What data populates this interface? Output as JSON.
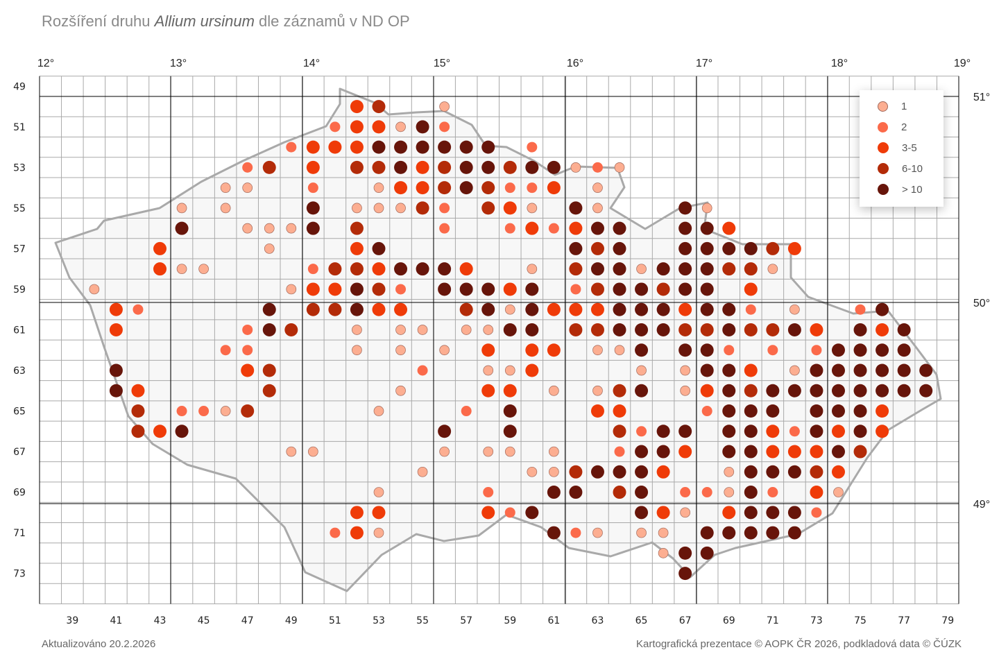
{
  "title": {
    "prefix": "Rozšíření druhu ",
    "species": "Allium ursinum",
    "suffix": " dle záznamů v ND OP"
  },
  "footer": {
    "updated": "Aktualizováno 20.2.2026",
    "credits": "Kartografická prezentace © AOPK ČR 2026, podkladová data © ČÚZK"
  },
  "longitudes": [
    "12°",
    "13°",
    "14°",
    "15°",
    "16°",
    "17°",
    "18°",
    "19°"
  ],
  "latitudes": [
    "51°",
    "50°",
    "49°"
  ],
  "row_labels": [
    "49",
    "51",
    "53",
    "55",
    "57",
    "59",
    "61",
    "63",
    "65",
    "67",
    "69",
    "71",
    "73"
  ],
  "column_labels": [
    "39",
    "41",
    "43",
    "45",
    "47",
    "49",
    "51",
    "53",
    "55",
    "57",
    "59",
    "61",
    "63",
    "65",
    "67",
    "69",
    "71",
    "73",
    "75",
    "77",
    "79"
  ],
  "legend": [
    {
      "label": "1",
      "color": "#fcae91"
    },
    {
      "label": "2",
      "color": "#fb6a4a"
    },
    {
      "label": "3-5",
      "color": "#ef3b08"
    },
    {
      "label": "6-10",
      "color": "#b32b08"
    },
    {
      "label": "> 10",
      "color": "#67150a"
    }
  ],
  "colors": {
    "border": "#a9a9a9",
    "grid": "#a9a9a9",
    "degree_lines": "#000000"
  },
  "records_by_square": [
    {
      "row": 50,
      "cells": [
        [
          52,
          3
        ],
        [
          53,
          4
        ],
        [
          56,
          1
        ]
      ]
    },
    {
      "row": 51,
      "cells": [
        [
          51,
          2
        ],
        [
          52,
          3
        ],
        [
          53,
          3
        ],
        [
          54,
          1
        ],
        [
          55,
          5
        ],
        [
          56,
          2
        ]
      ]
    },
    {
      "row": 52,
      "cells": [
        [
          49,
          2
        ],
        [
          50,
          3
        ],
        [
          51,
          3
        ],
        [
          52,
          3
        ],
        [
          53,
          5
        ],
        [
          54,
          5
        ],
        [
          55,
          5
        ],
        [
          56,
          5
        ],
        [
          57,
          5
        ],
        [
          58,
          5
        ],
        [
          60,
          2
        ]
      ]
    },
    {
      "row": 53,
      "cells": [
        [
          47,
          2
        ],
        [
          48,
          4
        ],
        [
          50,
          3
        ],
        [
          52,
          4
        ],
        [
          53,
          4
        ],
        [
          54,
          5
        ],
        [
          55,
          3
        ],
        [
          56,
          4
        ],
        [
          57,
          5
        ],
        [
          58,
          5
        ],
        [
          59,
          4
        ],
        [
          60,
          5
        ],
        [
          61,
          5
        ],
        [
          62,
          1
        ],
        [
          63,
          2
        ],
        [
          64,
          1
        ]
      ]
    },
    {
      "row": 54,
      "cells": [
        [
          46,
          1
        ],
        [
          47,
          1
        ],
        [
          50,
          2
        ],
        [
          53,
          1
        ],
        [
          54,
          3
        ],
        [
          55,
          3
        ],
        [
          56,
          4
        ],
        [
          57,
          5
        ],
        [
          58,
          4
        ],
        [
          59,
          2
        ],
        [
          60,
          2
        ],
        [
          61,
          3
        ],
        [
          63,
          1
        ]
      ]
    },
    {
      "row": 55,
      "cells": [
        [
          44,
          1
        ],
        [
          46,
          1
        ],
        [
          50,
          5
        ],
        [
          52,
          1
        ],
        [
          53,
          1
        ],
        [
          54,
          1
        ],
        [
          55,
          4
        ],
        [
          56,
          2
        ],
        [
          58,
          4
        ],
        [
          59,
          3
        ],
        [
          60,
          1
        ],
        [
          62,
          5
        ],
        [
          63,
          1
        ],
        [
          67,
          5
        ],
        [
          68,
          1
        ]
      ]
    },
    {
      "row": 56,
      "cells": [
        [
          44,
          5
        ],
        [
          47,
          1
        ],
        [
          48,
          1
        ],
        [
          49,
          1
        ],
        [
          50,
          5
        ],
        [
          52,
          4
        ],
        [
          56,
          2
        ],
        [
          59,
          2
        ],
        [
          60,
          3
        ],
        [
          61,
          2
        ],
        [
          62,
          3
        ],
        [
          63,
          5
        ],
        [
          64,
          5
        ],
        [
          67,
          5
        ],
        [
          68,
          5
        ],
        [
          69,
          3
        ]
      ]
    },
    {
      "row": 57,
      "cells": [
        [
          43,
          3
        ],
        [
          48,
          1
        ],
        [
          52,
          3
        ],
        [
          53,
          5
        ],
        [
          62,
          5
        ],
        [
          63,
          4
        ],
        [
          64,
          5
        ],
        [
          67,
          5
        ],
        [
          68,
          5
        ],
        [
          69,
          5
        ],
        [
          70,
          5
        ],
        [
          71,
          4
        ],
        [
          72,
          3
        ]
      ]
    },
    {
      "row": 58,
      "cells": [
        [
          43,
          3
        ],
        [
          44,
          1
        ],
        [
          45,
          1
        ],
        [
          50,
          2
        ],
        [
          51,
          4
        ],
        [
          52,
          4
        ],
        [
          53,
          3
        ],
        [
          54,
          5
        ],
        [
          55,
          5
        ],
        [
          56,
          5
        ],
        [
          57,
          3
        ],
        [
          60,
          1
        ],
        [
          62,
          4
        ],
        [
          63,
          5
        ],
        [
          64,
          5
        ],
        [
          65,
          1
        ],
        [
          66,
          5
        ],
        [
          67,
          5
        ],
        [
          68,
          5
        ],
        [
          69,
          4
        ],
        [
          70,
          4
        ],
        [
          71,
          1
        ]
      ]
    },
    {
      "row": 59,
      "cells": [
        [
          40,
          1
        ],
        [
          49,
          1
        ],
        [
          50,
          3
        ],
        [
          51,
          3
        ],
        [
          52,
          5
        ],
        [
          53,
          4
        ],
        [
          54,
          2
        ],
        [
          56,
          5
        ],
        [
          57,
          5
        ],
        [
          58,
          5
        ],
        [
          59,
          3
        ],
        [
          60,
          5
        ],
        [
          62,
          2
        ],
        [
          63,
          4
        ],
        [
          64,
          5
        ],
        [
          65,
          5
        ],
        [
          66,
          4
        ],
        [
          67,
          5
        ],
        [
          68,
          5
        ],
        [
          70,
          3
        ]
      ]
    },
    {
      "row": 60,
      "cells": [
        [
          41,
          3
        ],
        [
          42,
          2
        ],
        [
          48,
          5
        ],
        [
          50,
          4
        ],
        [
          51,
          4
        ],
        [
          52,
          5
        ],
        [
          53,
          3
        ],
        [
          54,
          3
        ],
        [
          57,
          4
        ],
        [
          58,
          5
        ],
        [
          59,
          1
        ],
        [
          60,
          5
        ],
        [
          61,
          3
        ],
        [
          62,
          3
        ],
        [
          63,
          3
        ],
        [
          64,
          5
        ],
        [
          65,
          5
        ],
        [
          66,
          5
        ],
        [
          67,
          3
        ],
        [
          68,
          5
        ],
        [
          69,
          5
        ],
        [
          70,
          2
        ],
        [
          72,
          1
        ],
        [
          75,
          2
        ],
        [
          76,
          5
        ]
      ]
    },
    {
      "row": 61,
      "cells": [
        [
          41,
          3
        ],
        [
          47,
          2
        ],
        [
          48,
          5
        ],
        [
          49,
          4
        ],
        [
          52,
          1
        ],
        [
          54,
          1
        ],
        [
          55,
          1
        ],
        [
          57,
          1
        ],
        [
          58,
          1
        ],
        [
          59,
          5
        ],
        [
          60,
          5
        ],
        [
          62,
          4
        ],
        [
          63,
          4
        ],
        [
          64,
          5
        ],
        [
          65,
          5
        ],
        [
          66,
          5
        ],
        [
          67,
          4
        ],
        [
          68,
          4
        ],
        [
          69,
          5
        ],
        [
          70,
          4
        ],
        [
          71,
          4
        ],
        [
          72,
          5
        ],
        [
          73,
          3
        ],
        [
          75,
          5
        ],
        [
          76,
          3
        ],
        [
          77,
          5
        ]
      ]
    },
    {
      "row": 62,
      "cells": [
        [
          46,
          2
        ],
        [
          47,
          2
        ],
        [
          52,
          1
        ],
        [
          54,
          1
        ],
        [
          56,
          1
        ],
        [
          58,
          3
        ],
        [
          60,
          3
        ],
        [
          61,
          3
        ],
        [
          63,
          1
        ],
        [
          64,
          1
        ],
        [
          65,
          5
        ],
        [
          67,
          5
        ],
        [
          68,
          5
        ],
        [
          69,
          2
        ],
        [
          71,
          2
        ],
        [
          73,
          2
        ],
        [
          74,
          5
        ],
        [
          75,
          5
        ],
        [
          76,
          5
        ],
        [
          77,
          5
        ]
      ]
    },
    {
      "row": 63,
      "cells": [
        [
          41,
          5
        ],
        [
          47,
          3
        ],
        [
          48,
          4
        ],
        [
          55,
          2
        ],
        [
          58,
          1
        ],
        [
          59,
          1
        ],
        [
          60,
          3
        ],
        [
          65,
          1
        ],
        [
          67,
          1
        ],
        [
          68,
          5
        ],
        [
          69,
          5
        ],
        [
          70,
          3
        ],
        [
          72,
          1
        ],
        [
          73,
          5
        ],
        [
          74,
          5
        ],
        [
          75,
          5
        ],
        [
          76,
          5
        ],
        [
          77,
          5
        ],
        [
          78,
          5
        ]
      ]
    },
    {
      "row": 64,
      "cells": [
        [
          41,
          5
        ],
        [
          42,
          3
        ],
        [
          48,
          4
        ],
        [
          54,
          1
        ],
        [
          58,
          3
        ],
        [
          59,
          3
        ],
        [
          61,
          1
        ],
        [
          63,
          1
        ],
        [
          64,
          4
        ],
        [
          65,
          5
        ],
        [
          67,
          1
        ],
        [
          68,
          3
        ],
        [
          69,
          5
        ],
        [
          70,
          4
        ],
        [
          71,
          5
        ],
        [
          72,
          5
        ],
        [
          73,
          5
        ],
        [
          74,
          5
        ],
        [
          75,
          5
        ],
        [
          76,
          5
        ],
        [
          77,
          5
        ],
        [
          78,
          5
        ]
      ]
    },
    {
      "row": 65,
      "cells": [
        [
          42,
          4
        ],
        [
          44,
          2
        ],
        [
          45,
          2
        ],
        [
          46,
          1
        ],
        [
          47,
          4
        ],
        [
          53,
          1
        ],
        [
          57,
          2
        ],
        [
          59,
          5
        ],
        [
          63,
          3
        ],
        [
          64,
          3
        ],
        [
          68,
          2
        ],
        [
          69,
          5
        ],
        [
          70,
          5
        ],
        [
          71,
          5
        ],
        [
          73,
          5
        ],
        [
          74,
          5
        ],
        [
          75,
          5
        ],
        [
          76,
          3
        ]
      ]
    },
    {
      "row": 66,
      "cells": [
        [
          42,
          4
        ],
        [
          43,
          3
        ],
        [
          44,
          5
        ],
        [
          56,
          5
        ],
        [
          59,
          5
        ],
        [
          64,
          4
        ],
        [
          65,
          2
        ],
        [
          66,
          5
        ],
        [
          67,
          5
        ],
        [
          69,
          5
        ],
        [
          70,
          5
        ],
        [
          71,
          3
        ],
        [
          72,
          2
        ],
        [
          73,
          5
        ],
        [
          74,
          3
        ],
        [
          75,
          5
        ],
        [
          76,
          3
        ]
      ]
    },
    {
      "row": 67,
      "cells": [
        [
          49,
          1
        ],
        [
          50,
          1
        ],
        [
          56,
          1
        ],
        [
          58,
          1
        ],
        [
          59,
          1
        ],
        [
          61,
          1
        ],
        [
          64,
          2
        ],
        [
          65,
          5
        ],
        [
          66,
          5
        ],
        [
          67,
          3
        ],
        [
          69,
          5
        ],
        [
          70,
          5
        ],
        [
          71,
          3
        ],
        [
          72,
          3
        ],
        [
          73,
          3
        ],
        [
          74,
          5
        ],
        [
          75,
          4
        ]
      ]
    },
    {
      "row": 68,
      "cells": [
        [
          55,
          1
        ],
        [
          60,
          1
        ],
        [
          61,
          1
        ],
        [
          62,
          4
        ],
        [
          63,
          5
        ],
        [
          64,
          5
        ],
        [
          65,
          5
        ],
        [
          66,
          3
        ],
        [
          69,
          1
        ],
        [
          70,
          5
        ],
        [
          71,
          5
        ],
        [
          72,
          5
        ],
        [
          73,
          4
        ],
        [
          74,
          3
        ]
      ]
    },
    {
      "row": 69,
      "cells": [
        [
          53,
          1
        ],
        [
          58,
          2
        ],
        [
          61,
          5
        ],
        [
          62,
          5
        ],
        [
          64,
          4
        ],
        [
          65,
          5
        ],
        [
          67,
          2
        ],
        [
          68,
          2
        ],
        [
          69,
          1
        ],
        [
          70,
          5
        ],
        [
          71,
          2
        ],
        [
          73,
          3
        ],
        [
          74,
          1
        ]
      ]
    },
    {
      "row": 70,
      "cells": [
        [
          52,
          3
        ],
        [
          53,
          3
        ],
        [
          58,
          3
        ],
        [
          59,
          2
        ],
        [
          60,
          5
        ],
        [
          65,
          5
        ],
        [
          66,
          3
        ],
        [
          67,
          1
        ],
        [
          69,
          3
        ],
        [
          70,
          5
        ],
        [
          71,
          5
        ],
        [
          72,
          5
        ],
        [
          73,
          2
        ]
      ]
    },
    {
      "row": 71,
      "cells": [
        [
          51,
          2
        ],
        [
          52,
          3
        ],
        [
          53,
          1
        ],
        [
          61,
          5
        ],
        [
          62,
          2
        ],
        [
          63,
          1
        ],
        [
          65,
          1
        ],
        [
          66,
          1
        ],
        [
          68,
          5
        ],
        [
          69,
          5
        ],
        [
          70,
          5
        ],
        [
          71,
          5
        ],
        [
          72,
          5
        ]
      ]
    },
    {
      "row": 72,
      "cells": [
        [
          66,
          1
        ],
        [
          67,
          5
        ],
        [
          68,
          5
        ]
      ]
    },
    {
      "row": 73,
      "cells": [
        [
          67,
          5
        ]
      ]
    }
  ]
}
